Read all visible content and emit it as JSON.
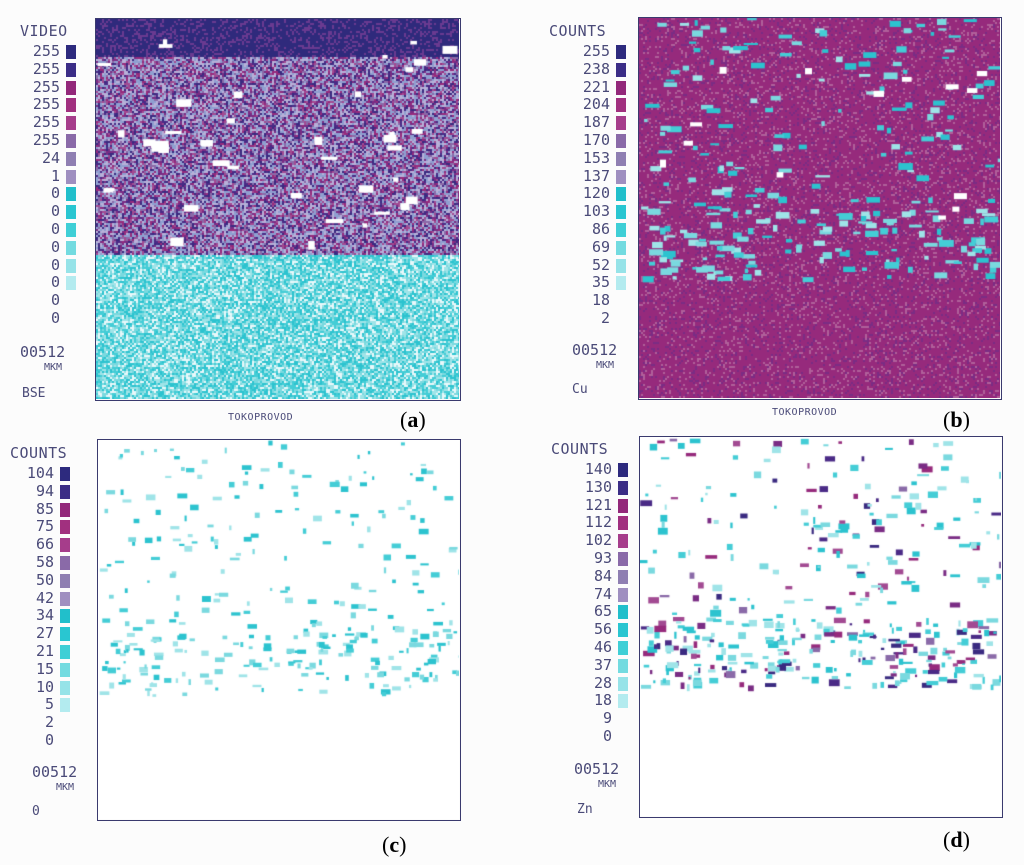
{
  "colors": {
    "levels": [
      "#2d2a7e",
      "#3b2d86",
      "#93287a",
      "#a1307f",
      "#a63d8b",
      "#8a6aa8",
      "#8f7fb2",
      "#9f8fc0",
      "#21bfcb",
      "#29c6d1",
      "#3fcfd6",
      "#73dbe0",
      "#96e3e8",
      "#b3ebef"
    ],
    "frame": "#3a3a6e",
    "text": "#4a4a78"
  },
  "panels": [
    {
      "id": "a",
      "scale_title": "VIDEO",
      "scale_values": [
        "255",
        "255",
        "255",
        "255",
        "255",
        "255",
        "24",
        "1",
        "0",
        "0",
        "0",
        "0",
        "0",
        "0",
        "0",
        "0"
      ],
      "scale_bar": "00512",
      "scale_unit": "MKM",
      "signal": "BSE",
      "caption": "TOKOPROVOD",
      "letter": "a"
    },
    {
      "id": "b",
      "scale_title": "COUNTS",
      "scale_values": [
        "255",
        "238",
        "221",
        "204",
        "187",
        "170",
        "153",
        "137",
        "120",
        "103",
        "86",
        "69",
        "52",
        "35",
        "18",
        "2"
      ],
      "scale_bar": "00512",
      "scale_unit": "MKM",
      "signal": "Cu",
      "caption": "TOKOPROVOD",
      "letter": "b"
    },
    {
      "id": "c",
      "scale_title": "COUNTS",
      "scale_values": [
        "104",
        "94",
        "85",
        "75",
        "66",
        "58",
        "50",
        "42",
        "34",
        "27",
        "21",
        "15",
        "10",
        "5",
        "2",
        "0"
      ],
      "scale_bar": "00512",
      "scale_unit": "MKM",
      "signal": "0",
      "caption": "",
      "letter": "c"
    },
    {
      "id": "d",
      "scale_title": "COUNTS",
      "scale_values": [
        "140",
        "130",
        "121",
        "112",
        "102",
        "93",
        "84",
        "74",
        "65",
        "56",
        "46",
        "37",
        "28",
        "18",
        "9",
        "0"
      ],
      "scale_bar": "00512",
      "scale_unit": "MKM",
      "signal": "Zn",
      "caption": "",
      "letter": "d"
    }
  ]
}
